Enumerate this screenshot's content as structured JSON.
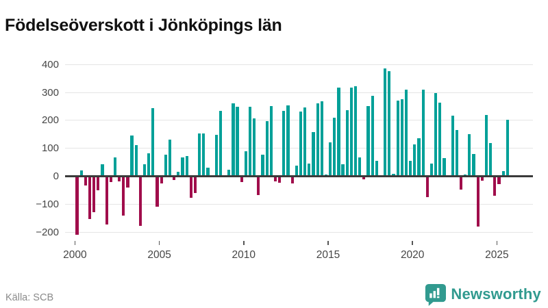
{
  "title": "Födelseöverskott i Jönköpings län",
  "footer": {
    "source": "Källa: SCB",
    "brand": "Newsworthy"
  },
  "colors": {
    "positive": "#00a098",
    "negative": "#a00d4b",
    "brand": "#319a8f"
  },
  "chart_data": {
    "type": "bar",
    "title": "Födelseöverskott i Jönköpings län",
    "source": "SCB",
    "frequency": "quarterly",
    "start_period": "2000 Q1",
    "end_period": "2025 Q3",
    "grid": true,
    "ylim": [
      -230,
      420
    ],
    "y_ticks": [
      400,
      300,
      200,
      100,
      0,
      -100,
      -200
    ],
    "y_tick_labels": [
      "400",
      "300",
      "200",
      "100",
      "0",
      "−100",
      "−200"
    ],
    "x_tick_years": [
      2000,
      2005,
      2010,
      2015,
      2020,
      2025
    ],
    "values": [
      -210,
      21,
      -34,
      -153,
      -128,
      -51,
      43,
      -174,
      -22,
      68,
      -18,
      -142,
      -40,
      145,
      111,
      -177,
      43,
      82,
      245,
      -108,
      -26,
      76,
      131,
      -14,
      17,
      68,
      73,
      -77,
      -61,
      154,
      152,
      31,
      0,
      149,
      233,
      0,
      23,
      261,
      250,
      -22,
      90,
      250,
      207,
      -67,
      76,
      197,
      251,
      -18,
      -24,
      233,
      253,
      -26,
      39,
      231,
      247,
      45,
      158,
      262,
      268,
      7,
      121,
      209,
      318,
      43,
      237,
      318,
      323,
      68,
      -10,
      252,
      289,
      54,
      0,
      387,
      377,
      8,
      272,
      276,
      309,
      54,
      113,
      136,
      309,
      -74,
      45,
      297,
      264,
      64,
      2,
      216,
      166,
      -49,
      5,
      151,
      80,
      -181,
      -16,
      219,
      120,
      -71,
      -29,
      19,
      201
    ]
  }
}
